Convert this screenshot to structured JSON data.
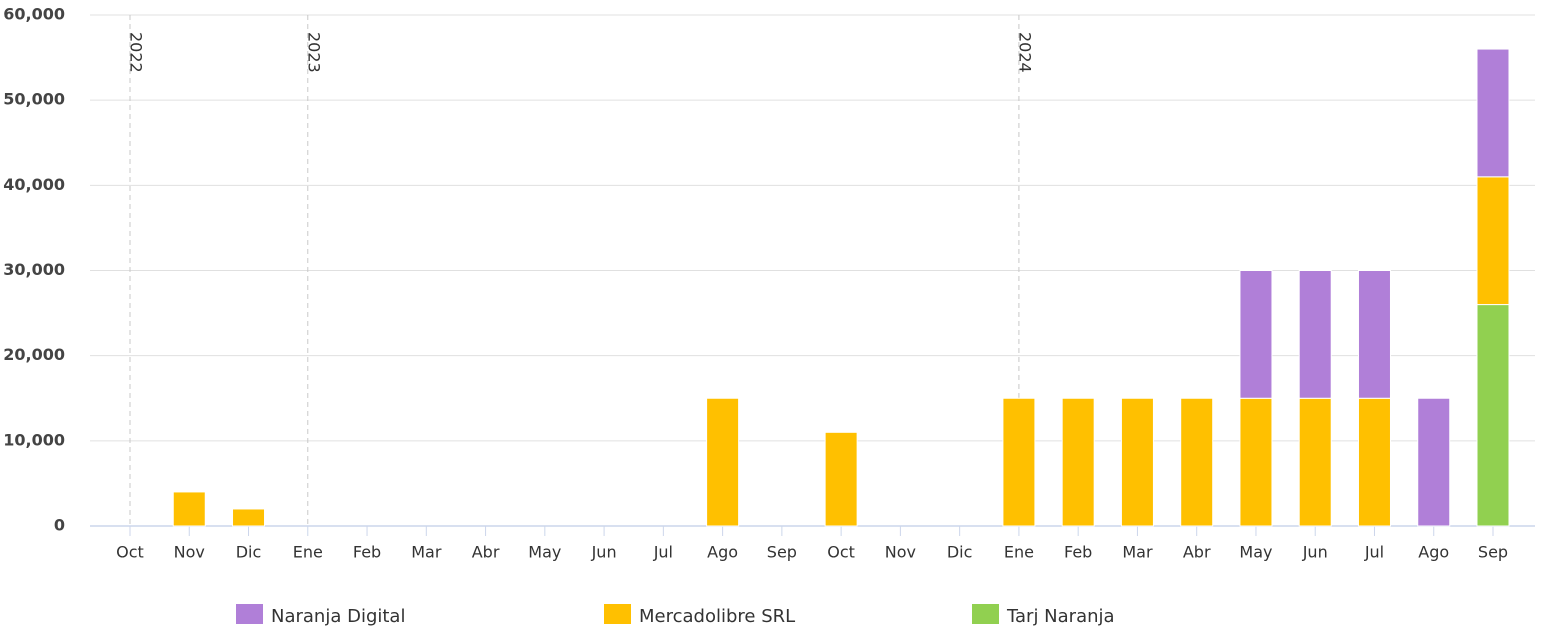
{
  "chart_data": {
    "type": "stacked_bar",
    "categories": [
      "Oct",
      "Nov",
      "Dic",
      "Ene",
      "Feb",
      "Mar",
      "Abr",
      "May",
      "Jun",
      "Jul",
      "Ago",
      "Sep",
      "Oct",
      "Nov",
      "Dic",
      "Ene",
      "Feb",
      "Mar",
      "Abr",
      "May",
      "Jun",
      "Jul",
      "Ago",
      "Sep"
    ],
    "annotations": [
      {
        "text": "2022",
        "category_index": 0
      },
      {
        "text": "2023",
        "category_index": 3
      },
      {
        "text": "2024",
        "category_index": 15
      }
    ],
    "series": [
      {
        "name": "Tarj Naranja",
        "color": "#91d050",
        "values": [
          null,
          null,
          null,
          null,
          null,
          null,
          null,
          null,
          null,
          null,
          null,
          null,
          null,
          null,
          null,
          null,
          null,
          null,
          null,
          null,
          null,
          null,
          null,
          26000
        ]
      },
      {
        "name": "Mercadolibre SRL",
        "color": "#ffc000",
        "values": [
          null,
          4000,
          2000,
          null,
          null,
          null,
          null,
          null,
          null,
          null,
          15000,
          null,
          11000,
          null,
          null,
          15000,
          15000,
          15000,
          15000,
          15000,
          15000,
          15000,
          null,
          15000
        ]
      },
      {
        "name": "Naranja Digital",
        "color": "#b07fd8",
        "values": [
          null,
          null,
          null,
          null,
          null,
          null,
          null,
          null,
          null,
          null,
          null,
          null,
          null,
          null,
          null,
          null,
          null,
          null,
          null,
          15000,
          15000,
          15000,
          15000,
          15000
        ]
      }
    ],
    "legend_order": [
      2,
      1,
      0
    ],
    "ylim": [
      0,
      60000
    ],
    "yticks": [
      0,
      {
        "value": 10000,
        "label": "10,000"
      },
      {
        "value": 20000,
        "label": "20,000"
      },
      {
        "value": 30000,
        "label": "30,000"
      },
      {
        "value": 40000,
        "label": "40,000"
      },
      {
        "value": 50000,
        "label": "50,000"
      },
      {
        "value": 60000,
        "label": "60,000"
      }
    ],
    "grid": true
  }
}
